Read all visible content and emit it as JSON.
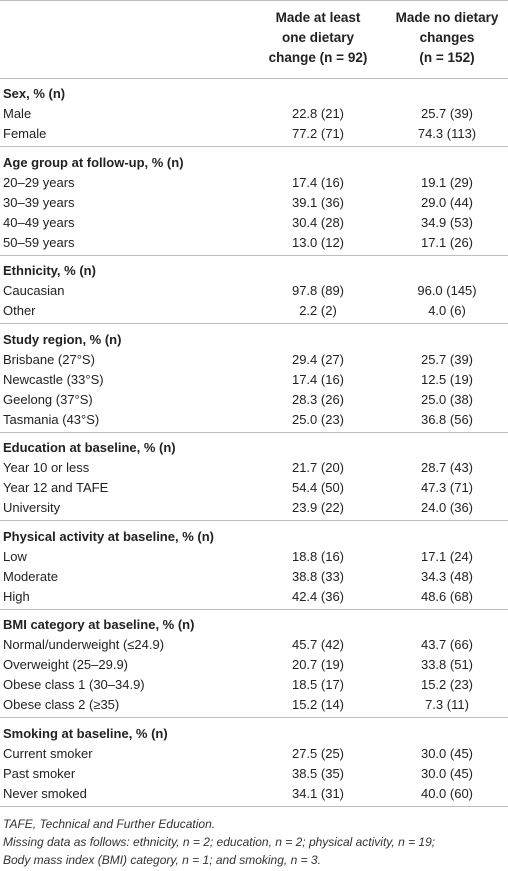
{
  "header": {
    "col1": [
      "Made at least",
      "one dietary",
      "change (n = 92)"
    ],
    "col2": [
      "Made no dietary",
      "changes",
      "(n = 152)"
    ]
  },
  "table": [
    {
      "type": "section",
      "label": "Sex, % (n)"
    },
    {
      "type": "row",
      "label": "Male",
      "v1": "22.8 (21)",
      "v2": "25.7 (39)"
    },
    {
      "type": "row",
      "label": "Female",
      "v1": "77.2 (71)",
      "v2": "74.3 (113)"
    },
    {
      "type": "section",
      "label": "Age group at follow-up, % (n)"
    },
    {
      "type": "row",
      "label": "20–29 years",
      "v1": "17.4 (16)",
      "v2": "19.1 (29)"
    },
    {
      "type": "row",
      "label": "30–39 years",
      "v1": "39.1 (36)",
      "v2": "29.0 (44)"
    },
    {
      "type": "row",
      "label": "40–49 years",
      "v1": "30.4 (28)",
      "v2": "34.9 (53)"
    },
    {
      "type": "row",
      "label": "50–59 years",
      "v1": "13.0 (12)",
      "v2": "17.1 (26)"
    },
    {
      "type": "section",
      "label": "Ethnicity, % (n)"
    },
    {
      "type": "row",
      "label": "Caucasian",
      "v1": "97.8 (89)",
      "v2": "96.0 (145)"
    },
    {
      "type": "row",
      "label": "Other",
      "v1": "2.2 (2)",
      "v2": "4.0 (6)"
    },
    {
      "type": "section",
      "label": "Study region, % (n)"
    },
    {
      "type": "row",
      "label": "Brisbane (27°S)",
      "v1": "29.4 (27)",
      "v2": "25.7 (39)"
    },
    {
      "type": "row",
      "label": "Newcastle (33°S)",
      "v1": "17.4 (16)",
      "v2": "12.5 (19)"
    },
    {
      "type": "row",
      "label": "Geelong (37°S)",
      "v1": "28.3 (26)",
      "v2": "25.0 (38)"
    },
    {
      "type": "row",
      "label": "Tasmania (43°S)",
      "v1": "25.0 (23)",
      "v2": "36.8 (56)"
    },
    {
      "type": "section",
      "label": "Education at baseline, % (n)"
    },
    {
      "type": "row",
      "label": "Year 10 or less",
      "v1": "21.7 (20)",
      "v2": "28.7 (43)"
    },
    {
      "type": "row",
      "label": "Year 12 and TAFE",
      "v1": "54.4 (50)",
      "v2": "47.3 (71)"
    },
    {
      "type": "row",
      "label": "University",
      "v1": "23.9 (22)",
      "v2": "24.0 (36)"
    },
    {
      "type": "section",
      "label": "Physical activity at baseline, % (n)"
    },
    {
      "type": "row",
      "label": "Low",
      "v1": "18.8 (16)",
      "v2": "17.1 (24)"
    },
    {
      "type": "row",
      "label": "Moderate",
      "v1": "38.8 (33)",
      "v2": "34.3 (48)"
    },
    {
      "type": "row",
      "label": "High",
      "v1": "42.4 (36)",
      "v2": "48.6 (68)"
    },
    {
      "type": "section",
      "label": "BMI category at baseline, % (n)"
    },
    {
      "type": "row",
      "label": "Normal/underweight (≤24.9)",
      "v1": "45.7 (42)",
      "v2": "43.7 (66)"
    },
    {
      "type": "row",
      "label": "Overweight (25–29.9)",
      "v1": "20.7 (19)",
      "v2": "33.8 (51)"
    },
    {
      "type": "row",
      "label": "Obese class 1 (30–34.9)",
      "v1": "18.5 (17)",
      "v2": "15.2 (23)"
    },
    {
      "type": "row",
      "label": "Obese class 2 (≥35)",
      "v1": "15.2 (14)",
      "v2": "7.3 (11)"
    },
    {
      "type": "section",
      "label": "Smoking at baseline, % (n)"
    },
    {
      "type": "row",
      "label": "Current smoker",
      "v1": "27.5 (25)",
      "v2": "30.0 (45)"
    },
    {
      "type": "row",
      "label": "Past smoker",
      "v1": "38.5 (35)",
      "v2": "30.0 (45)"
    },
    {
      "type": "row",
      "label": "Never smoked",
      "v1": "34.1 (31)",
      "v2": "40.0 (60)"
    }
  ],
  "footnotes": [
    "TAFE, Technical and Further Education.",
    "Missing data as follows: ethnicity, n = 2; education, n = 2; physical activity, n = 19;",
    "Body mass index (BMI) category, n = 1; and smoking, n = 3."
  ]
}
